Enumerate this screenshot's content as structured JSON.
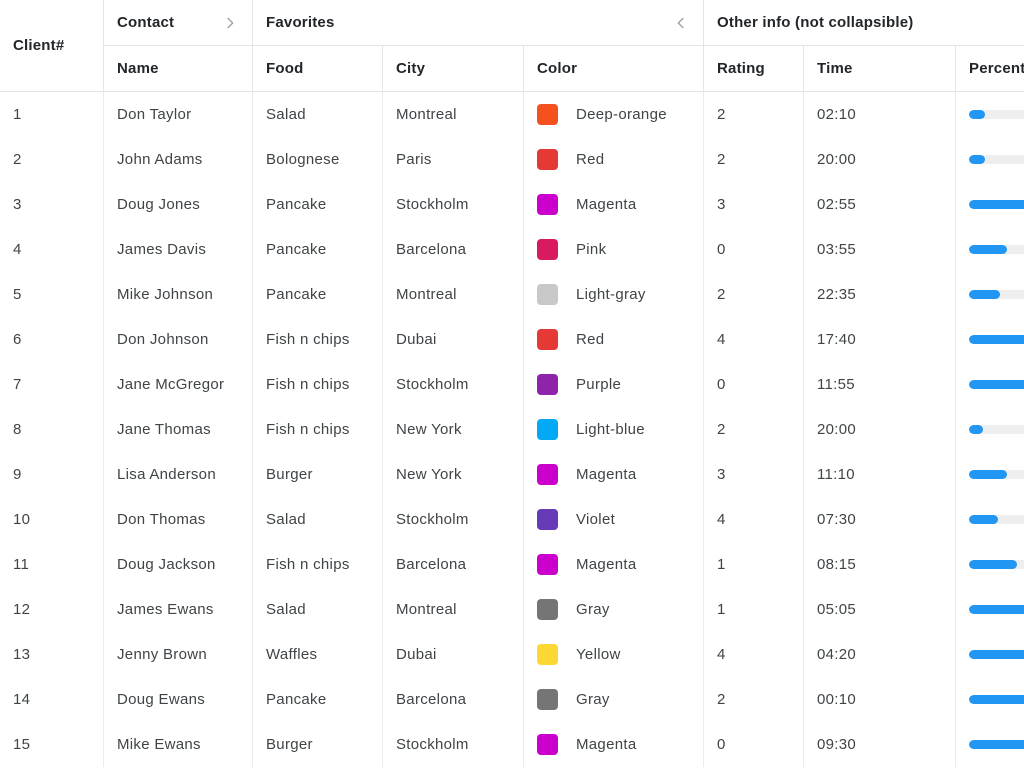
{
  "header": {
    "corner_label": "Client#",
    "groups": [
      {
        "label": "Contact",
        "chevron": "right"
      },
      {
        "label": "Favorites",
        "chevron": "left"
      },
      {
        "label": "Other info (not collapsible)",
        "chevron": null
      }
    ],
    "columns": [
      "Name",
      "Food",
      "City",
      "Color",
      "Rating",
      "Time",
      "Percent"
    ]
  },
  "colors": {
    "bar_fill": "#2196f3",
    "bar_track": "#eeeeee",
    "chevron": "#9e9e9e"
  },
  "rows": [
    {
      "client": "1",
      "name": "Don Taylor",
      "food": "Salad",
      "city": "Montreal",
      "color": {
        "label": "Deep-orange",
        "hex": "#F4511E"
      },
      "rating": "2",
      "time": "02:10",
      "percent": 13
    },
    {
      "client": "2",
      "name": "John Adams",
      "food": "Bolognese",
      "city": "Paris",
      "color": {
        "label": "Red",
        "hex": "#E53935"
      },
      "rating": "2",
      "time": "20:00",
      "percent": 13
    },
    {
      "client": "3",
      "name": "Doug Jones",
      "food": "Pancake",
      "city": "Stockholm",
      "color": {
        "label": "Magenta",
        "hex": "#CC00CC"
      },
      "rating": "3",
      "time": "02:55",
      "percent": 62
    },
    {
      "client": "4",
      "name": "James Davis",
      "food": "Pancake",
      "city": "Barcelona",
      "color": {
        "label": "Pink",
        "hex": "#D81B60"
      },
      "rating": "0",
      "time": "03:55",
      "percent": 32
    },
    {
      "client": "5",
      "name": "Mike Johnson",
      "food": "Pancake",
      "city": "Montreal",
      "color": {
        "label": "Light-gray",
        "hex": "#C8C8C8"
      },
      "rating": "2",
      "time": "22:35",
      "percent": 26
    },
    {
      "client": "6",
      "name": "Don Johnson",
      "food": "Fish n chips",
      "city": "Dubai",
      "color": {
        "label": "Red",
        "hex": "#E53935"
      },
      "rating": "4",
      "time": "17:40",
      "percent": 62
    },
    {
      "client": "7",
      "name": "Jane McGregor",
      "food": "Fish n chips",
      "city": "Stockholm",
      "color": {
        "label": "Purple",
        "hex": "#8E24AA"
      },
      "rating": "0",
      "time": "11:55",
      "percent": 62
    },
    {
      "client": "8",
      "name": "Jane Thomas",
      "food": "Fish n chips",
      "city": "New York",
      "color": {
        "label": "Light-blue",
        "hex": "#03A9F4"
      },
      "rating": "2",
      "time": "20:00",
      "percent": 12
    },
    {
      "client": "9",
      "name": "Lisa Anderson",
      "food": "Burger",
      "city": "New York",
      "color": {
        "label": "Magenta",
        "hex": "#CC00CC"
      },
      "rating": "3",
      "time": "11:10",
      "percent": 32
    },
    {
      "client": "10",
      "name": "Don Thomas",
      "food": "Salad",
      "city": "Stockholm",
      "color": {
        "label": "Violet",
        "hex": "#673AB7"
      },
      "rating": "4",
      "time": "07:30",
      "percent": 24
    },
    {
      "client": "11",
      "name": "Doug Jackson",
      "food": "Fish n chips",
      "city": "Barcelona",
      "color": {
        "label": "Magenta",
        "hex": "#CC00CC"
      },
      "rating": "1",
      "time": "08:15",
      "percent": 40
    },
    {
      "client": "12",
      "name": "James Ewans",
      "food": "Salad",
      "city": "Montreal",
      "color": {
        "label": "Gray",
        "hex": "#757575"
      },
      "rating": "1",
      "time": "05:05",
      "percent": 62
    },
    {
      "client": "13",
      "name": "Jenny Brown",
      "food": "Waffles",
      "city": "Dubai",
      "color": {
        "label": "Yellow",
        "hex": "#FDD835"
      },
      "rating": "4",
      "time": "04:20",
      "percent": 62
    },
    {
      "client": "14",
      "name": "Doug Ewans",
      "food": "Pancake",
      "city": "Barcelona",
      "color": {
        "label": "Gray",
        "hex": "#757575"
      },
      "rating": "2",
      "time": "00:10",
      "percent": 62
    },
    {
      "client": "15",
      "name": "Mike Ewans",
      "food": "Burger",
      "city": "Stockholm",
      "color": {
        "label": "Magenta",
        "hex": "#CC00CC"
      },
      "rating": "0",
      "time": "09:30",
      "percent": 62
    }
  ]
}
